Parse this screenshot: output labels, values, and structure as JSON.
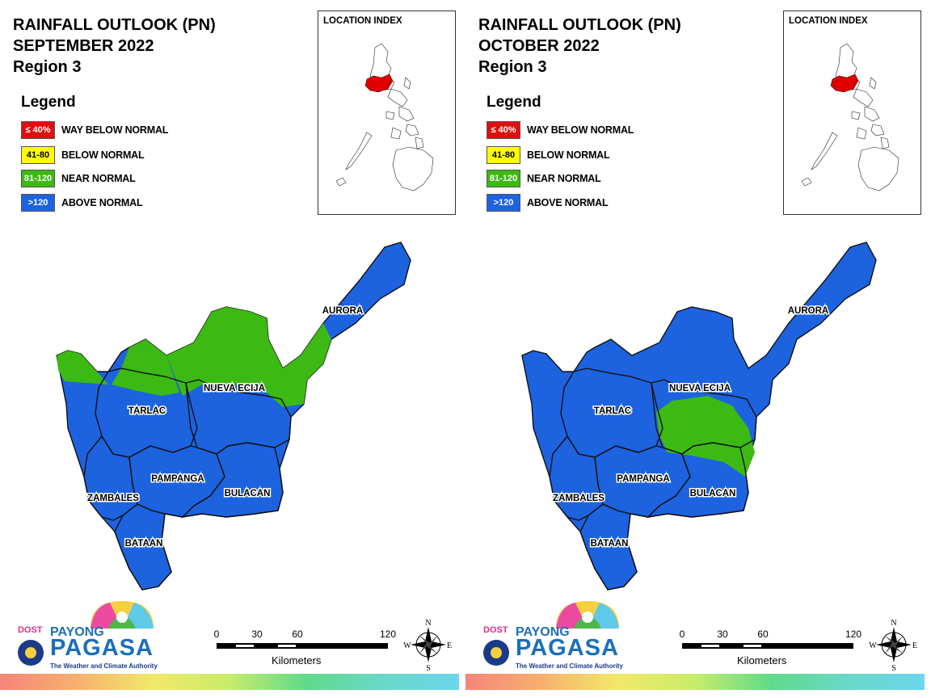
{
  "panels": [
    {
      "title": "RAINFALL OUTLOOK (PN)\nSEPTEMBER 2022\nRegion 3",
      "month": "SEPTEMBER 2022",
      "nueva_ecija_zone": "mostly-above-normal-north-near-normal",
      "aurora_zone": "mixed"
    },
    {
      "title": "RAINFALL OUTLOOK (PN)\nOCTOBER 2022\nRegion 3",
      "month": "OCTOBER 2022",
      "nueva_ecija_zone": "above-normal-with-south-near-normal",
      "aurora_zone": "above-normal"
    }
  ],
  "legend": {
    "title": "Legend",
    "items": [
      {
        "range": "≤ 40%",
        "label": "WAY BELOW NORMAL",
        "color": "#e10e0e",
        "text_color": "#ffffff"
      },
      {
        "range": "41-80",
        "label": "BELOW NORMAL",
        "color": "#ffff00",
        "text_color": "#000000"
      },
      {
        "range": "81-120",
        "label": "NEAR NORMAL",
        "color": "#3cb913",
        "text_color": "#ffffff"
      },
      {
        "range": ">120",
        "label": "ABOVE NORMAL",
        "color": "#1d63e0",
        "text_color": "#ffffff"
      }
    ]
  },
  "inset": {
    "title": "LOCATION INDEX",
    "highlight_color": "#e00000"
  },
  "provinces": [
    "AURORA",
    "NUEVA ECIJA",
    "TARLAC",
    "PAMPANGA",
    "BULACAN",
    "ZAMBALES",
    "BATAAN"
  ],
  "logo": {
    "dost": "DOST",
    "payong": "PAYONG",
    "pagasa": "PAGASA",
    "tagline": "The Weather and Climate Authority"
  },
  "scale": {
    "ticks": [
      "0",
      "30",
      "60",
      "120"
    ],
    "unit": "Kilometers"
  },
  "compass": {
    "n": "N",
    "s": "S",
    "e": "E",
    "w": "W",
    "icon": "compass-rose-icon"
  },
  "colors": {
    "above_normal": "#1d63e0",
    "near_normal": "#3cb913"
  }
}
